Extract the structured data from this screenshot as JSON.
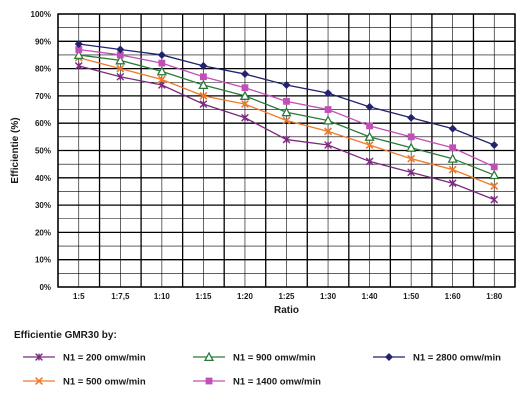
{
  "chart_data": {
    "type": "line",
    "title": "",
    "xlabel": "Ratio",
    "ylabel": "Efficientie (%)",
    "categories": [
      "1:5",
      "1:7,5",
      "1:10",
      "1:15",
      "1:20",
      "1:25",
      "1:30",
      "1:40",
      "1:50",
      "1:60",
      "1:80"
    ],
    "yticks": [
      "0%",
      "10%",
      "20%",
      "30%",
      "40%",
      "50%",
      "60%",
      "70%",
      "80%",
      "90%",
      "100%"
    ],
    "ylim": [
      0,
      100
    ],
    "grid": true,
    "legend_title": "Efficientie GMR30 by:",
    "legend_position": "bottom",
    "series": [
      {
        "name": "N1 = 200 omw/min",
        "marker": "star",
        "color": "#7a2a7e",
        "values": [
          81,
          77,
          74,
          67,
          62,
          54,
          52,
          46,
          42,
          38,
          32
        ]
      },
      {
        "name": "N1 = 500 omw/min",
        "marker": "x",
        "color": "#f07a2a",
        "values": [
          84,
          80,
          76,
          70,
          67,
          61,
          57,
          52,
          47,
          43,
          37
        ]
      },
      {
        "name": "N1 = 900 omw/min",
        "marker": "triangle",
        "color": "#2a7a3a",
        "values": [
          85,
          83,
          79,
          74,
          70,
          64,
          61,
          55,
          51,
          47,
          41
        ]
      },
      {
        "name": "N1 = 1400 omw/min",
        "marker": "square",
        "color": "#c24fb8",
        "values": [
          87,
          85,
          82,
          77,
          73,
          68,
          65,
          59,
          55,
          51,
          44
        ]
      },
      {
        "name": "N1 = 2800 omw/min",
        "marker": "diamond",
        "color": "#22226e",
        "values": [
          89,
          87,
          85,
          81,
          78,
          74,
          71,
          66,
          62,
          58,
          52
        ]
      }
    ]
  }
}
